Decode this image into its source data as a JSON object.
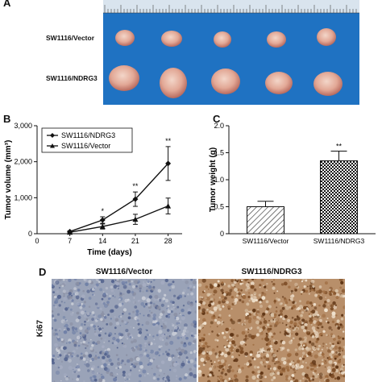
{
  "panel_a": {
    "letter": "A",
    "rows": [
      "SW1116/Vector",
      "SW1116/NDRG3"
    ]
  },
  "panel_b": {
    "letter": "B",
    "chart_data": {
      "type": "line",
      "x": [
        7,
        14,
        21,
        28
      ],
      "xlabel": "Time (days)",
      "ylabel": "Tumor volume (mm³)",
      "yticks": [
        "0",
        "1,000",
        "2,000",
        "3,000"
      ],
      "ylim": [
        0,
        3000
      ],
      "xlim": [
        0,
        31
      ],
      "series": [
        {
          "name": "SW1116/NDRG3",
          "marker": "diamond",
          "values": [
            60,
            380,
            960,
            1950
          ],
          "errors": [
            20,
            90,
            200,
            470
          ]
        },
        {
          "name": "SW1116/Vector",
          "marker": "triangle",
          "values": [
            40,
            200,
            400,
            770
          ],
          "errors": [
            15,
            70,
            140,
            220
          ]
        }
      ],
      "significance": [
        {
          "x": 14,
          "label": "*"
        },
        {
          "x": 21,
          "label": "**"
        },
        {
          "x": 28,
          "label": "**"
        }
      ],
      "legend": "top-left"
    }
  },
  "panel_c": {
    "letter": "C",
    "chart_data": {
      "type": "bar",
      "categories": [
        "SW1116/Vector",
        "SW1116/NDRG3"
      ],
      "values": [
        0.5,
        1.35
      ],
      "errors": [
        0.1,
        0.18
      ],
      "ylabel": "Tumor weight (g)",
      "yticks": [
        "0",
        "0.5",
        "1.0",
        "1.5",
        "2.0"
      ],
      "ylim": [
        0,
        2.0
      ],
      "significance": [
        {
          "category": "SW1116/NDRG3",
          "label": "**"
        }
      ]
    }
  },
  "panel_d": {
    "letter": "D",
    "titles": [
      "SW1116/Vector",
      "SW1116/NDRG3"
    ],
    "row_label": "Ki67"
  }
}
